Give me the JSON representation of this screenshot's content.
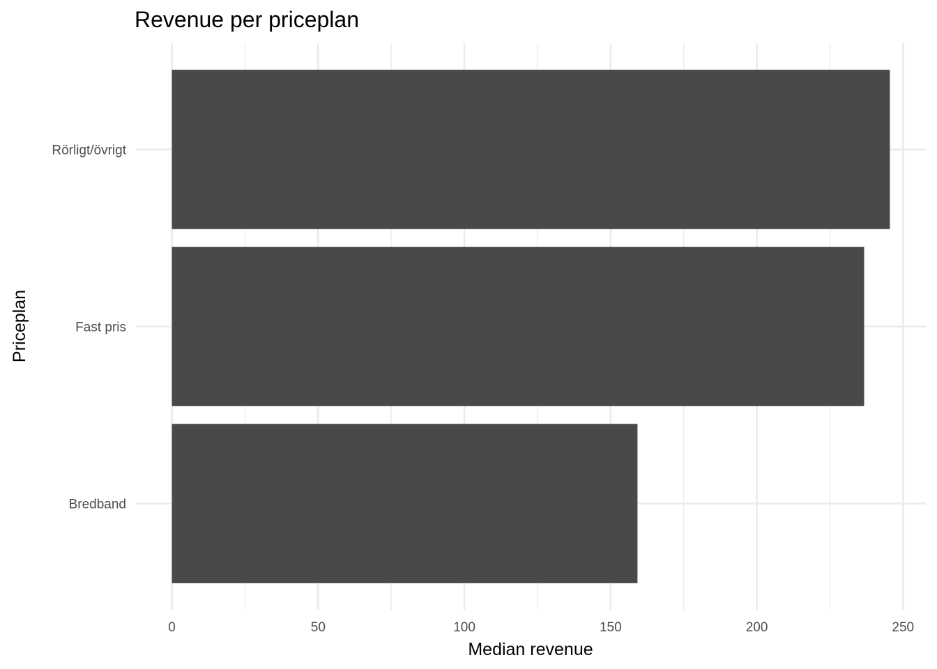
{
  "chart_data": {
    "type": "bar",
    "orientation": "horizontal",
    "title": "Revenue per priceplan",
    "xlabel": "Median revenue",
    "ylabel": "Priceplan",
    "categories": [
      "Bredband",
      "Fast pris",
      "Rörligt/övrigt"
    ],
    "values": [
      159.2,
      236.7,
      245.5
    ],
    "xlim": [
      -12.3,
      257.8
    ],
    "xticks": [
      0,
      50,
      100,
      150,
      200,
      250
    ],
    "grid": true,
    "bar_color": "#494949",
    "grid_color": "#ebebeb",
    "legend": "none"
  }
}
